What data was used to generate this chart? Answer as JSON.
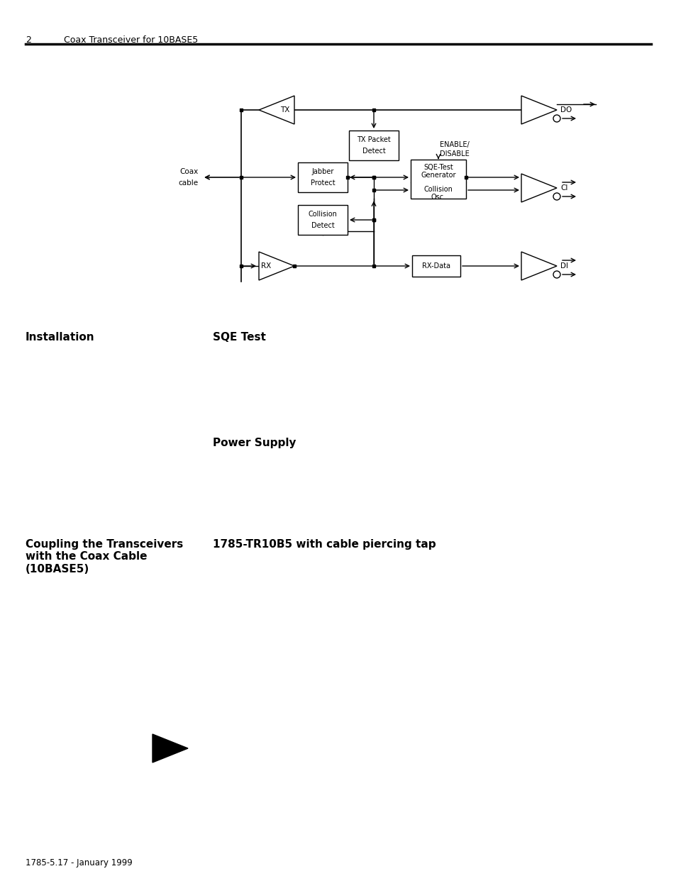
{
  "page_number": "2",
  "page_header": "Coax Transceiver for 10BASE5",
  "footer_text": "1785-5.17 - January 1999",
  "bg_color": "#ffffff",
  "section1_heading": "Installation",
  "section2_heading": "SQE Test",
  "section3_heading": "Power Supply",
  "section4_heading": "Coupling the Transceivers\nwith the Coax Cable\n(10BASE5)",
  "section5_heading": "1785-TR10B5 with cable piercing tap"
}
